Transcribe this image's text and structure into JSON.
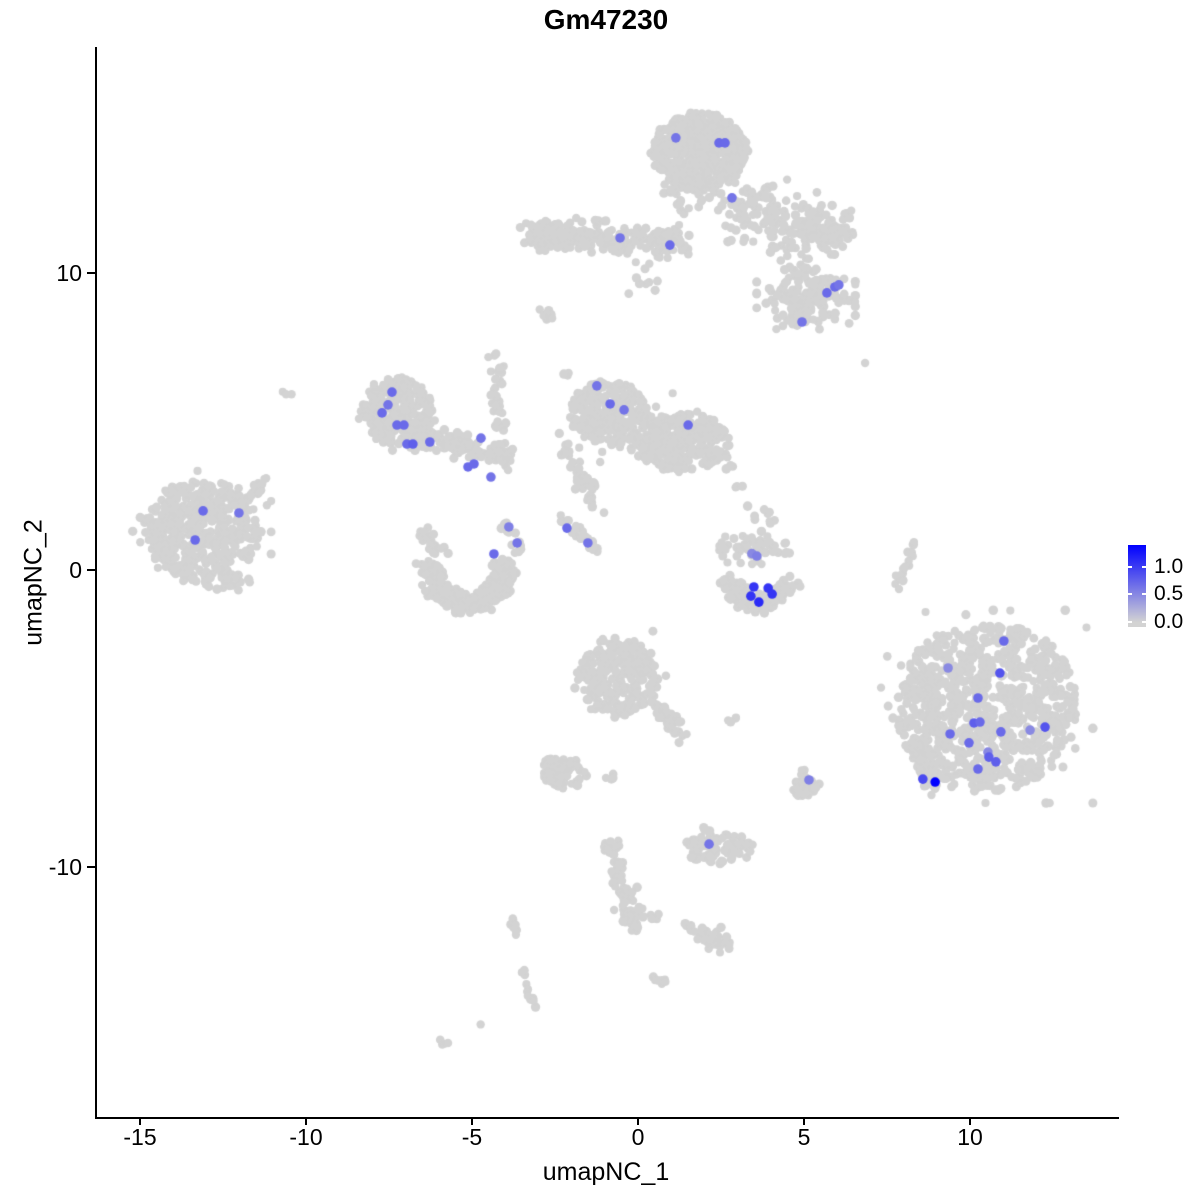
{
  "chart_data": {
    "type": "scatter",
    "title": "Gm47230",
    "xlabel": "umapNC_1",
    "ylabel": "umapNC_2",
    "xlim": [
      -16.35,
      14.43
    ],
    "ylim": [
      -18.42,
      17.61
    ],
    "x_ticks": [
      -15,
      -10,
      -5,
      0,
      5,
      10
    ],
    "y_ticks": [
      -10,
      0,
      10
    ],
    "grid": false,
    "point_color_low": "#D3D3D3",
    "point_color_high": "#0000FF",
    "legend": {
      "position": "right",
      "labels": [
        "1.0",
        "0.5",
        "0.0"
      ],
      "values": [
        1.0,
        0.5,
        0.0
      ],
      "max_value": 1.35,
      "low_color": "#D3D3D3",
      "high_color": "#0000FF"
    },
    "background_clusters": [
      {
        "type": "disc",
        "cx": 1.8,
        "cy": 14.1,
        "rx": 1.42,
        "ry": 1.32,
        "n": 560
      },
      {
        "type": "blob",
        "cx": 1.55,
        "cy": 12.6,
        "rx": 0.9,
        "ry": 0.55,
        "n": 30
      },
      {
        "type": "blob",
        "cx": 3.8,
        "cy": 12.1,
        "rx": 1.5,
        "ry": 0.95,
        "n": 70
      },
      {
        "type": "strand",
        "x1": -3.4,
        "y1": 11.35,
        "x2": 1.2,
        "y2": 11.05,
        "w": 0.5,
        "n": 190
      },
      {
        "type": "blob",
        "cx": -2.6,
        "cy": 11.3,
        "rx": 0.8,
        "ry": 0.5,
        "n": 70
      },
      {
        "type": "blob",
        "cx": 5.5,
        "cy": 11.45,
        "rx": 0.9,
        "ry": 0.75,
        "n": 110
      },
      {
        "type": "strand",
        "x1": 3.0,
        "y1": 12.4,
        "x2": 4.9,
        "y2": 10.4,
        "w": 0.55,
        "n": 40
      },
      {
        "type": "blob",
        "cx": 5.0,
        "cy": 9.1,
        "rx": 1.35,
        "ry": 0.9,
        "n": 140
      },
      {
        "type": "strand",
        "x1": 4.2,
        "y1": 10.3,
        "x2": 5.4,
        "y2": 9.9,
        "w": 0.3,
        "n": 14
      },
      {
        "type": "blob",
        "cx": 0.0,
        "cy": 9.7,
        "rx": 0.55,
        "ry": 0.6,
        "n": 10
      },
      {
        "type": "dot",
        "x": 6.78,
        "y": 6.97
      },
      {
        "type": "blob",
        "cx": -2.15,
        "cy": 6.6,
        "rx": 0.18,
        "ry": 0.1,
        "n": 3
      },
      {
        "type": "disc",
        "cx": -7.3,
        "cy": 5.35,
        "rx": 1.1,
        "ry": 1.15,
        "n": 210
      },
      {
        "type": "blob",
        "cx": -7.3,
        "cy": 5.35,
        "rx": 1.2,
        "ry": 1.2,
        "n": 40
      },
      {
        "type": "strand",
        "x1": -6.8,
        "y1": 4.55,
        "x2": -3.8,
        "y2": 3.85,
        "w": 0.4,
        "n": 110
      },
      {
        "type": "strand",
        "x1": -4.35,
        "y1": 7.4,
        "x2": -4.15,
        "y2": 3.4,
        "w": 0.22,
        "n": 45
      },
      {
        "type": "disc",
        "cx": -0.95,
        "cy": 5.3,
        "rx": 1.15,
        "ry": 1.05,
        "n": 240
      },
      {
        "type": "disc",
        "cx": 1.3,
        "cy": 4.3,
        "rx": 1.45,
        "ry": 0.95,
        "n": 240
      },
      {
        "type": "blob",
        "cx": 0.1,
        "cy": 4.8,
        "rx": 1.8,
        "ry": 1.1,
        "n": 60
      },
      {
        "type": "strand",
        "x1": -2.45,
        "y1": 4.5,
        "x2": -1.25,
        "y2": 2.2,
        "w": 0.28,
        "n": 38
      },
      {
        "type": "strand",
        "x1": -2.4,
        "y1": 1.75,
        "x2": -1.1,
        "y2": 0.55,
        "w": 0.2,
        "n": 26
      },
      {
        "type": "strand",
        "x1": 2.0,
        "y1": 4.6,
        "x2": 4.05,
        "y2": 1.35,
        "w": 0.3,
        "n": 18
      },
      {
        "type": "disc",
        "cx": -13.2,
        "cy": 1.3,
        "rx": 1.75,
        "ry": 1.75,
        "n": 420
      },
      {
        "type": "blob",
        "cx": -13.2,
        "cy": 1.3,
        "rx": 1.9,
        "ry": 1.85,
        "n": 60
      },
      {
        "type": "blob",
        "cx": -12.4,
        "cy": -0.35,
        "rx": 0.6,
        "ry": 0.3,
        "n": 25
      },
      {
        "type": "strand",
        "x1": -12.2,
        "y1": 2.1,
        "x2": -11.3,
        "y2": 2.9,
        "w": 0.22,
        "n": 28
      },
      {
        "type": "arc",
        "cx": -5.2,
        "cy": -0.05,
        "r": 1.4,
        "a0": 165,
        "a1": 385,
        "t": 0.45,
        "n": 260
      },
      {
        "type": "strand",
        "x1": -6.6,
        "y1": 1.35,
        "x2": -5.9,
        "y2": 0.5,
        "w": 0.28,
        "n": 24
      },
      {
        "type": "strand",
        "x1": -4.1,
        "y1": 1.5,
        "x2": -3.6,
        "y2": 0.7,
        "w": 0.22,
        "n": 14
      },
      {
        "type": "blob",
        "cx": -2.75,
        "cy": 8.55,
        "rx": 0.3,
        "ry": 0.22,
        "n": 8
      },
      {
        "type": "blob",
        "cx": -10.65,
        "cy": 5.95,
        "rx": 0.14,
        "ry": 0.1,
        "n": 3
      },
      {
        "type": "blob",
        "cx": 3.6,
        "cy": 0.75,
        "rx": 1.1,
        "ry": 0.5,
        "n": 55
      },
      {
        "type": "arc",
        "cx": 3.6,
        "cy": -0.25,
        "r": 1.15,
        "a0": 180,
        "a1": 360,
        "t": 0.5,
        "n": 130
      },
      {
        "type": "strand",
        "x1": 7.75,
        "y1": -0.5,
        "x2": 8.25,
        "y2": 1.0,
        "w": 0.15,
        "n": 16
      },
      {
        "type": "dot",
        "x": 7.8,
        "y": -0.64
      },
      {
        "type": "dot",
        "x": 8.25,
        "y": 0.94
      },
      {
        "type": "disc",
        "cx": -0.65,
        "cy": -3.6,
        "rx": 1.2,
        "ry": 1.35,
        "n": 230
      },
      {
        "type": "blob",
        "cx": -0.65,
        "cy": -3.6,
        "rx": 1.3,
        "ry": 1.4,
        "n": 40
      },
      {
        "type": "strand",
        "x1": 0.45,
        "y1": -4.4,
        "x2": 1.3,
        "y2": -5.6,
        "w": 0.28,
        "n": 40
      },
      {
        "type": "blob",
        "cx": 2.75,
        "cy": -5.0,
        "rx": 0.22,
        "ry": 0.13,
        "n": 4
      },
      {
        "type": "disc",
        "cx": -2.3,
        "cy": -6.85,
        "rx": 0.65,
        "ry": 0.52,
        "n": 65
      },
      {
        "type": "blob",
        "cx": -2.72,
        "cy": -6.38,
        "rx": 0.14,
        "ry": 0.14,
        "n": 5
      },
      {
        "type": "disc",
        "cx": 4.95,
        "cy": -7.3,
        "rx": 0.42,
        "ry": 0.36,
        "n": 45
      },
      {
        "type": "blob",
        "cx": 4.88,
        "cy": -6.8,
        "rx": 0.1,
        "ry": 0.1,
        "n": 4
      },
      {
        "type": "blob",
        "cx": -0.85,
        "cy": -7.0,
        "rx": 0.16,
        "ry": 0.12,
        "n": 4
      },
      {
        "type": "disc",
        "cx": 10.45,
        "cy": -4.6,
        "rx": 2.75,
        "ry": 2.85,
        "n": 780
      },
      {
        "type": "blob",
        "cx": 10.45,
        "cy": -4.6,
        "rx": 2.9,
        "ry": 2.95,
        "n": 120
      },
      {
        "type": "strand",
        "x1": 8.25,
        "y1": -5.7,
        "x2": 8.85,
        "y2": -7.35,
        "w": 0.3,
        "n": 45
      },
      {
        "type": "disc",
        "cx": 2.4,
        "cy": -9.35,
        "rx": 1.0,
        "ry": 0.55,
        "n": 85
      },
      {
        "type": "blob",
        "cx": 2.0,
        "cy": -8.72,
        "rx": 0.12,
        "ry": 0.12,
        "n": 4
      },
      {
        "type": "blob",
        "cx": -0.85,
        "cy": -9.3,
        "rx": 0.28,
        "ry": 0.38,
        "n": 14
      },
      {
        "type": "strand",
        "x1": -0.8,
        "y1": -9.75,
        "x2": -0.15,
        "y2": -12.1,
        "w": 0.22,
        "n": 55
      },
      {
        "type": "blob",
        "cx": -0.2,
        "cy": -11.4,
        "rx": 0.32,
        "ry": 0.65,
        "n": 35
      },
      {
        "type": "dot",
        "x": -0.78,
        "y": -11.45
      },
      {
        "type": "blob",
        "cx": 0.4,
        "cy": -11.65,
        "rx": 0.35,
        "ry": 0.16,
        "n": 7
      },
      {
        "type": "blob",
        "cx": 1.45,
        "cy": -12.0,
        "rx": 0.22,
        "ry": 0.13,
        "n": 5
      },
      {
        "type": "blob",
        "cx": 2.25,
        "cy": -12.45,
        "rx": 0.55,
        "ry": 0.42,
        "n": 38
      },
      {
        "type": "blob",
        "cx": 0.6,
        "cy": -13.85,
        "rx": 0.18,
        "ry": 0.18,
        "n": 7
      },
      {
        "type": "strand",
        "x1": -3.85,
        "y1": -11.7,
        "x2": -3.68,
        "y2": -12.35,
        "w": 0.1,
        "n": 9
      },
      {
        "type": "strand",
        "x1": -3.55,
        "y1": -13.3,
        "x2": -3.2,
        "y2": -14.8,
        "w": 0.1,
        "n": 12
      },
      {
        "type": "dot",
        "x": -4.8,
        "y": -15.3
      },
      {
        "type": "blob",
        "cx": -5.9,
        "cy": -15.9,
        "rx": 0.22,
        "ry": 0.2,
        "n": 4
      }
    ],
    "expression_points": [
      [
        1.08,
        14.55,
        0.45
      ],
      [
        2.38,
        14.38,
        0.5
      ],
      [
        2.56,
        14.38,
        0.5
      ],
      [
        2.77,
        12.53,
        0.45
      ],
      [
        -0.6,
        11.18,
        0.45
      ],
      [
        0.9,
        10.94,
        0.5
      ],
      [
        5.87,
        9.53,
        0.5
      ],
      [
        5.99,
        9.6,
        0.45
      ],
      [
        5.63,
        9.33,
        0.5
      ],
      [
        4.88,
        8.35,
        0.45
      ],
      [
        -7.47,
        5.99,
        0.5
      ],
      [
        -7.59,
        5.56,
        0.45
      ],
      [
        -7.77,
        5.29,
        0.5
      ],
      [
        -7.32,
        4.88,
        0.5
      ],
      [
        -7.11,
        4.88,
        0.5
      ],
      [
        -7.02,
        4.24,
        0.5
      ],
      [
        -6.84,
        4.24,
        0.55
      ],
      [
        -6.33,
        4.31,
        0.5
      ],
      [
        -4.79,
        4.44,
        0.45
      ],
      [
        -5.18,
        3.47,
        0.5
      ],
      [
        -5.0,
        3.57,
        0.5
      ],
      [
        -4.49,
        3.13,
        0.45
      ],
      [
        -1.3,
        6.2,
        0.45
      ],
      [
        -0.9,
        5.59,
        0.5
      ],
      [
        -0.48,
        5.39,
        0.45
      ],
      [
        1.45,
        4.88,
        0.5
      ],
      [
        -4.4,
        0.54,
        0.5
      ],
      [
        -3.95,
        1.45,
        0.4
      ],
      [
        -3.7,
        0.91,
        0.45
      ],
      [
        -2.2,
        1.41,
        0.5
      ],
      [
        -1.57,
        0.91,
        0.45
      ],
      [
        -13.16,
        1.99,
        0.5
      ],
      [
        -12.08,
        1.92,
        0.45
      ],
      [
        -13.4,
        1.01,
        0.5
      ],
      [
        3.37,
        0.55,
        0.35
      ],
      [
        3.52,
        0.47,
        0.4
      ],
      [
        3.43,
        -0.57,
        0.75
      ],
      [
        3.86,
        -0.61,
        0.75
      ],
      [
        3.34,
        -0.88,
        0.75
      ],
      [
        3.98,
        -0.81,
        0.75
      ],
      [
        3.58,
        -1.08,
        0.8
      ],
      [
        10.96,
        -2.39,
        0.5
      ],
      [
        9.28,
        -3.3,
        0.35
      ],
      [
        10.84,
        -3.47,
        0.6
      ],
      [
        10.18,
        -4.31,
        0.5
      ],
      [
        10.06,
        -5.15,
        0.55
      ],
      [
        10.24,
        -5.12,
        0.5
      ],
      [
        9.34,
        -5.52,
        0.5
      ],
      [
        10.87,
        -5.45,
        0.5
      ],
      [
        11.75,
        -5.39,
        0.35
      ],
      [
        12.2,
        -5.29,
        0.6
      ],
      [
        9.91,
        -5.82,
        0.5
      ],
      [
        10.48,
        -6.13,
        0.35
      ],
      [
        10.51,
        -6.3,
        0.55
      ],
      [
        10.72,
        -6.46,
        0.55
      ],
      [
        10.18,
        -6.7,
        0.5
      ],
      [
        8.52,
        -7.04,
        0.65
      ],
      [
        8.89,
        -7.14,
        1.0
      ],
      [
        5.09,
        -7.07,
        0.4
      ],
      [
        2.08,
        -9.23,
        0.45
      ]
    ]
  }
}
